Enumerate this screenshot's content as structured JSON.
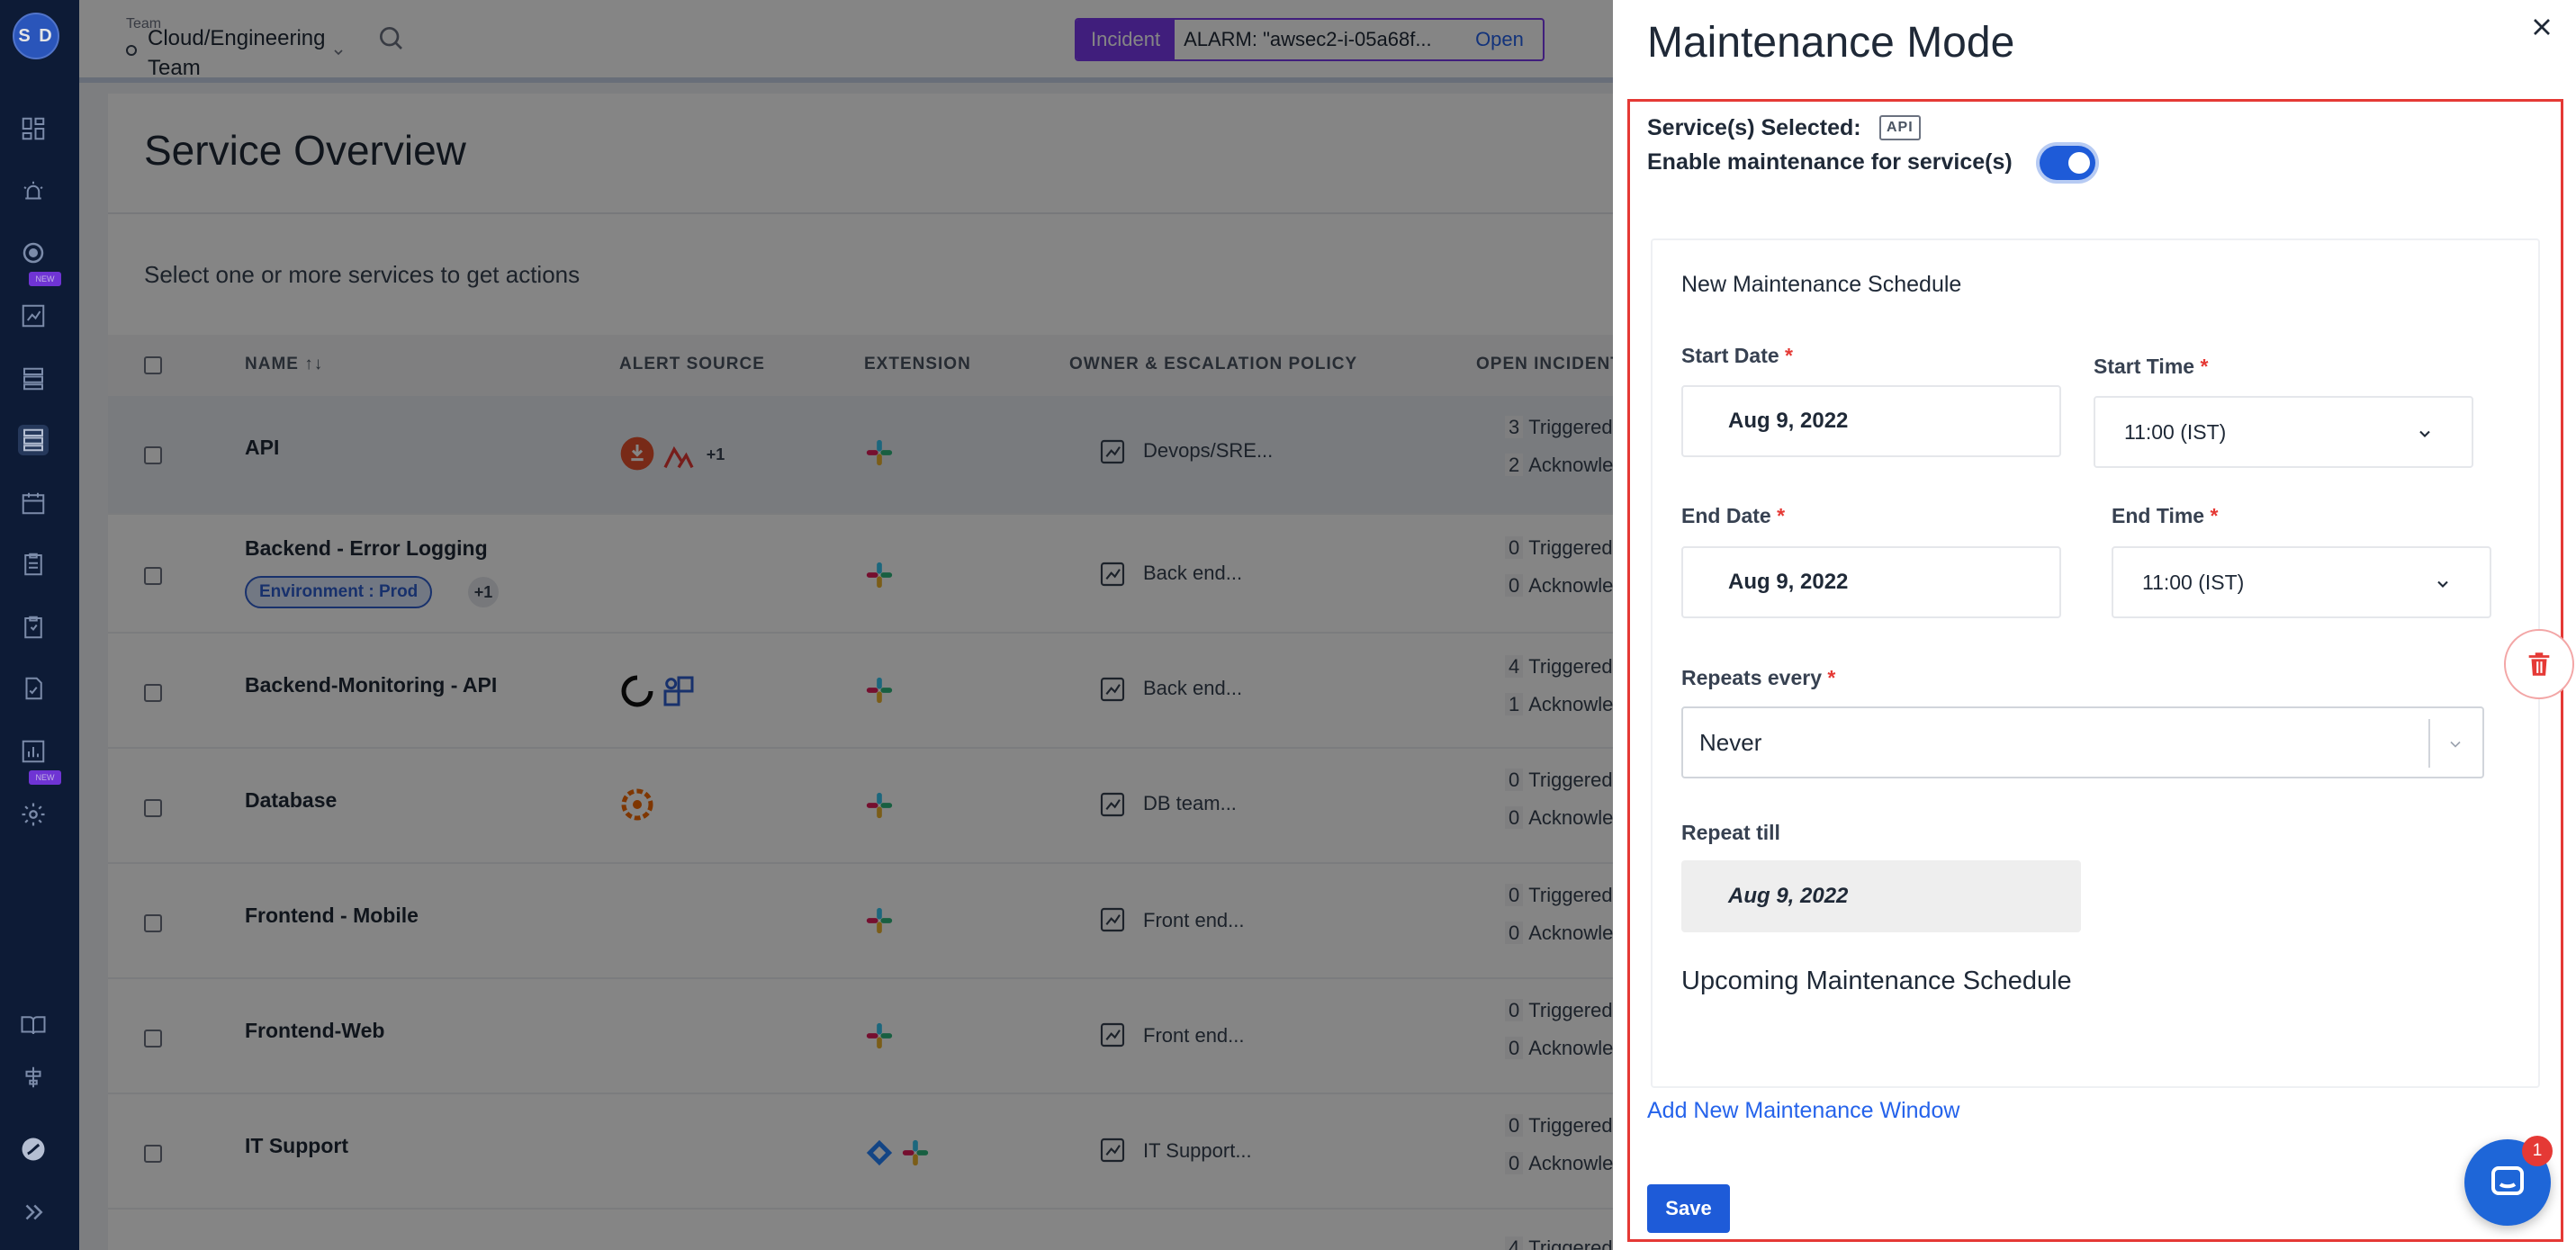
{
  "nav": {
    "avatar_initials": "S D",
    "new_tag_label": "NEW"
  },
  "topbar": {
    "team_label": "Team",
    "team_name": "Cloud/Engineering Team",
    "incident_tag": "Incident",
    "incident_text": "ALARM: \"awsec2-i-05a68f...",
    "incident_open": "Open"
  },
  "page": {
    "title": "Service Overview",
    "select_hint": "Select one or more services to get actions",
    "columns": {
      "name": "NAME ↑↓",
      "alert_source": "ALERT SOURCE",
      "extension": "EXTENSION",
      "owner": "OWNER & ESCALATION POLICY",
      "open_incidents": "OPEN INCIDENTS"
    }
  },
  "services": [
    {
      "name": "API",
      "owner": "Devops/SRE...",
      "triggered_count": "3",
      "ack_count": "2",
      "alert_plus": "+1"
    },
    {
      "name": "Backend - Error Logging",
      "badge": "Environment : Prod",
      "badge_plus": "+1",
      "owner": "Back end...",
      "triggered_count": "0",
      "ack_count": "0"
    },
    {
      "name": "Backend-Monitoring - API",
      "owner": "Back end...",
      "triggered_count": "4",
      "ack_count": "1"
    },
    {
      "name": "Database",
      "owner": "DB team...",
      "triggered_count": "0",
      "ack_count": "0"
    },
    {
      "name": "Frontend - Mobile",
      "owner": "Front end...",
      "triggered_count": "0",
      "ack_count": "0"
    },
    {
      "name": "Frontend-Web",
      "owner": "Front end...",
      "triggered_count": "0",
      "ack_count": "0"
    },
    {
      "name": "IT Support",
      "owner": "IT Support...",
      "triggered_count": "0",
      "ack_count": "0"
    }
  ],
  "incident_labels": {
    "triggered": "Triggered",
    "acknowledged": "Acknowledg",
    "last_row_triggered_count": "4"
  },
  "drawer": {
    "title": "Maintenance Mode",
    "services_selected_label": "Service(s) Selected:",
    "services_selected_chip": "API",
    "enable_label": "Enable maintenance for service(s)",
    "schedule_title": "New Maintenance Schedule",
    "start_date_label": "Start Date",
    "start_date_value": "Aug 9, 2022",
    "start_time_label": "Start Time",
    "start_time_value": "11:00 (IST)",
    "end_date_label": "End Date",
    "end_date_value": "Aug 9, 2022",
    "end_time_label": "End Time",
    "end_time_value": "11:00 (IST)",
    "required_mark": "*",
    "repeats_label": "Repeats every",
    "repeats_value": "Never",
    "repeat_till_label": "Repeat till",
    "repeat_till_value": "Aug 9, 2022",
    "upcoming_title": "Upcoming Maintenance Schedule",
    "add_window_label": "Add New Maintenance Window",
    "save_label": "Save",
    "chat_badge_count": "1"
  },
  "colors": {
    "nav_bg": "#0f1f3d",
    "primary": "#1e5bd8",
    "incident_purple": "#7c3aed",
    "highlight_red": "#e53935"
  },
  "icons": [
    "close-icon",
    "trash-icon",
    "chat-icon",
    "search-icon",
    "slack-icon",
    "chevron-down-icon"
  ]
}
